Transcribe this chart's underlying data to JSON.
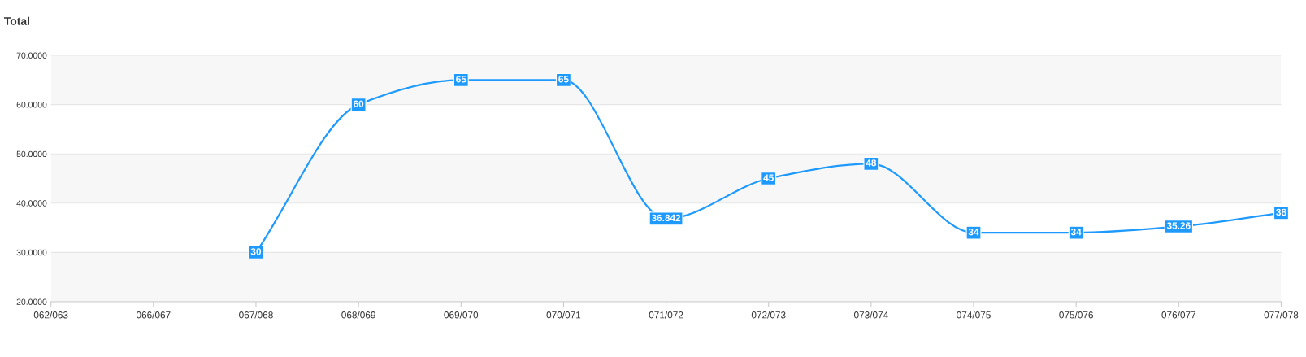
{
  "chart_data": {
    "type": "line",
    "title": "Total",
    "categories": [
      "062/063",
      "066/067",
      "067/068",
      "068/069",
      "069/070",
      "070/071",
      "071/072",
      "072/073",
      "073/074",
      "074/075",
      "075/076",
      "076/077",
      "077/078"
    ],
    "series": [
      {
        "color": "#1e9aff",
        "values": [
          null,
          null,
          30,
          60,
          65,
          65,
          36.842,
          45,
          48,
          34,
          34,
          35.26,
          38
        ]
      }
    ],
    "ylim": [
      20,
      70
    ],
    "yticks": [
      {
        "value": 20,
        "label": "20.0000"
      },
      {
        "value": 30,
        "label": "30.0000"
      },
      {
        "value": 40,
        "label": "40.0000"
      },
      {
        "value": 50,
        "label": "50.0000"
      },
      {
        "value": 60,
        "label": "60.0000"
      },
      {
        "value": 70,
        "label": "70.0000"
      }
    ],
    "grid": "y",
    "data_labels": true,
    "marker": "square",
    "line_style": "solid",
    "legend": false
  }
}
